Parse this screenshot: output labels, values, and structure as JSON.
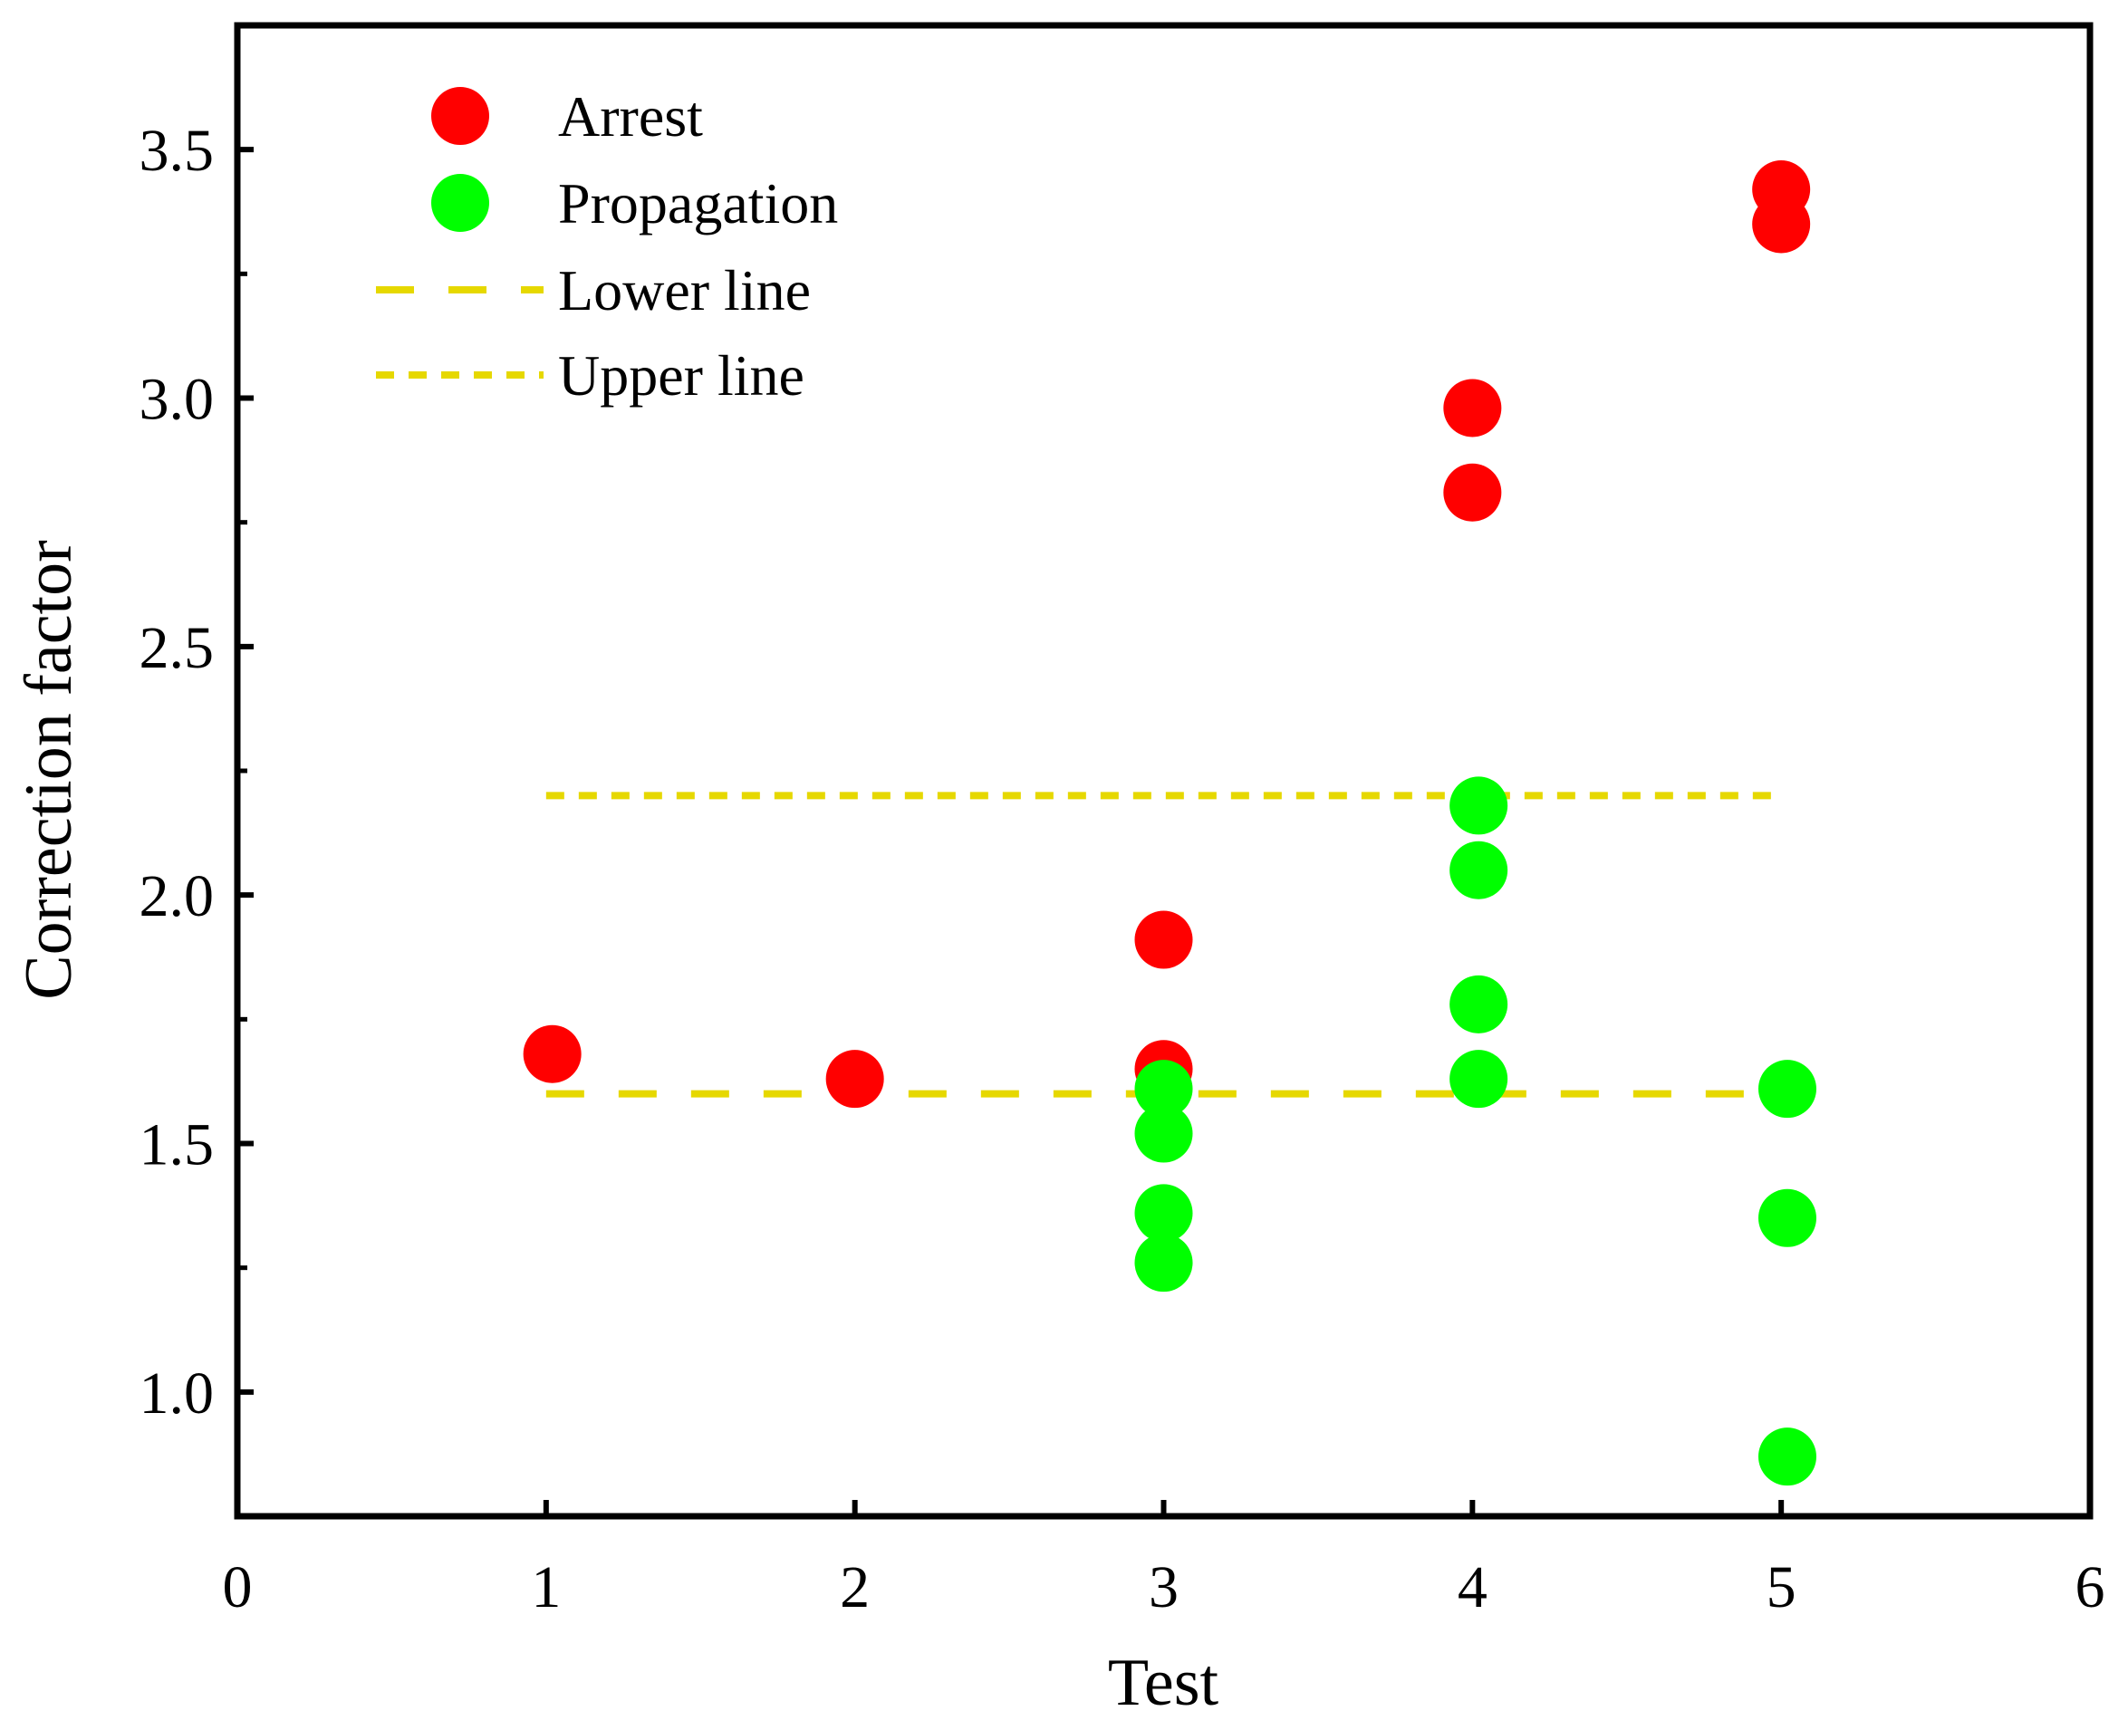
{
  "chart_data": {
    "type": "scatter",
    "title": "",
    "xlabel": "Test",
    "ylabel": "Correction factor",
    "xlim": [
      0,
      6
    ],
    "ylim": [
      0.75,
      3.75
    ],
    "xticks": [
      0,
      1,
      2,
      3,
      4,
      5,
      6
    ],
    "xtick_labels": [
      "0",
      "1",
      "2",
      "3",
      "4",
      "5",
      "6"
    ],
    "yticks": [
      1.0,
      1.5,
      2.0,
      2.5,
      3.0,
      3.5
    ],
    "ytick_labels": [
      "1.0",
      "1.5",
      "2.0",
      "2.5",
      "3.0",
      "3.5"
    ],
    "grid": false,
    "legend_position": "top-left",
    "series": [
      {
        "name": "Arrest",
        "kind": "scatter",
        "color": "#ff0000",
        "points": [
          {
            "x": 1.02,
            "y": 1.68
          },
          {
            "x": 2.0,
            "y": 1.63
          },
          {
            "x": 3.0,
            "y": 1.91
          },
          {
            "x": 3.0,
            "y": 1.65
          },
          {
            "x": 4.0,
            "y": 2.98
          },
          {
            "x": 4.0,
            "y": 2.81
          },
          {
            "x": 5.0,
            "y": 3.42
          },
          {
            "x": 5.0,
            "y": 3.35
          }
        ]
      },
      {
        "name": "Propagation",
        "kind": "scatter",
        "color": "#00ff00",
        "points": [
          {
            "x": 3.0,
            "y": 1.61
          },
          {
            "x": 3.0,
            "y": 1.52
          },
          {
            "x": 3.0,
            "y": 1.36
          },
          {
            "x": 3.0,
            "y": 1.26
          },
          {
            "x": 4.02,
            "y": 2.18
          },
          {
            "x": 4.02,
            "y": 2.05
          },
          {
            "x": 4.02,
            "y": 1.78
          },
          {
            "x": 4.02,
            "y": 1.63
          },
          {
            "x": 5.02,
            "y": 1.61
          },
          {
            "x": 5.02,
            "y": 1.35
          },
          {
            "x": 5.02,
            "y": 0.87
          }
        ]
      },
      {
        "name": "Lower line",
        "kind": "line",
        "style": "dashed",
        "color": "#e6d800",
        "x": [
          1,
          5
        ],
        "y": [
          1.6,
          1.6
        ]
      },
      {
        "name": "Upper line",
        "kind": "line",
        "style": "dotted",
        "color": "#e6d800",
        "x": [
          1,
          5
        ],
        "y": [
          2.2,
          2.2
        ]
      }
    ]
  }
}
